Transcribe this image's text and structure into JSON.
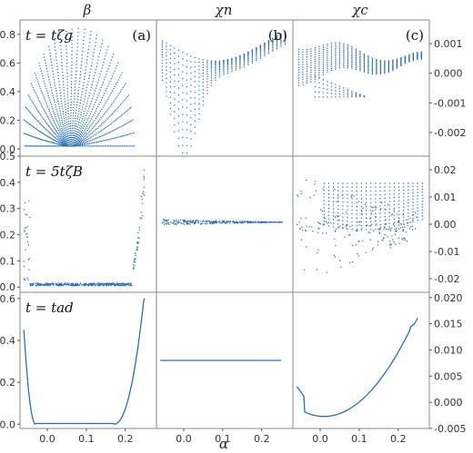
{
  "column_titles": [
    "β",
    "χn",
    "χc"
  ],
  "axis_xlabel": "α",
  "row_labels": [
    "t = tζg",
    "t = 5tζB",
    "t = tad"
  ],
  "panel_tags": [
    "(a)",
    "(b)",
    "(c)"
  ],
  "colors": {
    "series": "#2a6fb5",
    "frame": "#888888"
  },
  "chart_data": [
    {
      "type": "scatter",
      "row": 0,
      "col": 0,
      "column_title": "β",
      "row_label": "t = tζg",
      "panel_tag": "(a)",
      "xlim": [
        -0.07,
        0.28
      ],
      "ylim": [
        -0.05,
        0.9
      ],
      "y_ticks": [
        0.0,
        0.2,
        0.4,
        0.6,
        0.8
      ],
      "y_tick_labels": [
        "0.0",
        "0.2",
        "0.4",
        "0.6",
        "0.8"
      ],
      "y_axis_side": "left",
      "shape": "dome",
      "description_points": 26
    },
    {
      "type": "scatter",
      "row": 0,
      "col": 1,
      "column_title": "χn",
      "panel_tag": "(b)",
      "xlim": [
        -0.07,
        0.28
      ],
      "ylim": [
        -0.0025,
        0.0018
      ],
      "shape": "twisted-surface"
    },
    {
      "type": "scatter",
      "row": 0,
      "col": 2,
      "column_title": "χc",
      "panel_tag": "(c)",
      "xlim": [
        -0.07,
        0.28
      ],
      "ylim": [
        -0.0028,
        0.0018
      ],
      "y_ticks": [
        0.001,
        0.0,
        -0.001,
        -0.002
      ],
      "y_tick_labels": [
        "0.001",
        "0.000",
        "-0.001",
        "-0.002"
      ],
      "y_axis_side": "right",
      "shape": "twisted-surface-c"
    },
    {
      "type": "scatter",
      "row": 1,
      "col": 0,
      "row_label": "t = 5tζB",
      "xlim": [
        -0.07,
        0.28
      ],
      "ylim": [
        -0.02,
        0.5
      ],
      "y_ticks": [
        0.0,
        0.1,
        0.2,
        0.3,
        0.4,
        0.5
      ],
      "y_tick_labels": [
        "0.0",
        "0.1",
        "0.2",
        "0.3",
        "0.4",
        "0.5"
      ],
      "y_axis_side": "left",
      "shape": "bathtub"
    },
    {
      "type": "scatter",
      "row": 1,
      "col": 1,
      "xlim": [
        -0.07,
        0.28
      ],
      "ylim": [
        -1,
        1
      ],
      "shape": "wedge"
    },
    {
      "type": "scatter",
      "row": 1,
      "col": 2,
      "xlim": [
        -0.07,
        0.28
      ],
      "ylim": [
        -0.025,
        0.025
      ],
      "y_ticks": [
        0.02,
        0.01,
        0.0,
        -0.01,
        -0.02
      ],
      "y_tick_labels": [
        "0.02",
        "0.01",
        "0.00",
        "-0.01",
        "-0.02"
      ],
      "y_axis_side": "right",
      "shape": "scatter-surface"
    },
    {
      "type": "line",
      "row": 2,
      "col": 0,
      "row_label": "t = tad",
      "xlim": [
        -0.07,
        0.28
      ],
      "ylim": [
        -0.02,
        0.63
      ],
      "y_ticks": [
        0.0,
        0.2,
        0.4,
        0.6
      ],
      "y_tick_labels": [
        "0.0",
        "0.2",
        "0.4",
        "0.6"
      ],
      "y_axis_side": "left",
      "x_ticks": [
        0.0,
        0.1,
        0.2
      ],
      "x_tick_labels": [
        "0.0",
        "0.1",
        "0.2"
      ],
      "shape": "bathtub-steep"
    },
    {
      "type": "line",
      "row": 2,
      "col": 1,
      "xlim": [
        -0.07,
        0.28
      ],
      "ylim": [
        -1,
        1
      ],
      "x_ticks": [
        0.0,
        0.1,
        0.2
      ],
      "x_tick_labels": [
        "0.0",
        "0.1",
        "0.2"
      ],
      "shape": "flat"
    },
    {
      "type": "line",
      "row": 2,
      "col": 2,
      "xlim": [
        -0.07,
        0.28
      ],
      "ylim": [
        -0.005,
        0.021
      ],
      "y_ticks": [
        0.02,
        0.015,
        0.01,
        0.005,
        0.0,
        -0.005
      ],
      "y_tick_labels": [
        "0.020",
        "0.015",
        "0.010",
        "0.005",
        "0.000",
        "-0.005"
      ],
      "y_axis_side": "right",
      "x_ticks": [
        0.0,
        0.1,
        0.2
      ],
      "x_tick_labels": [
        "0.0",
        "0.1",
        "0.2"
      ],
      "shape": "parabola"
    }
  ]
}
